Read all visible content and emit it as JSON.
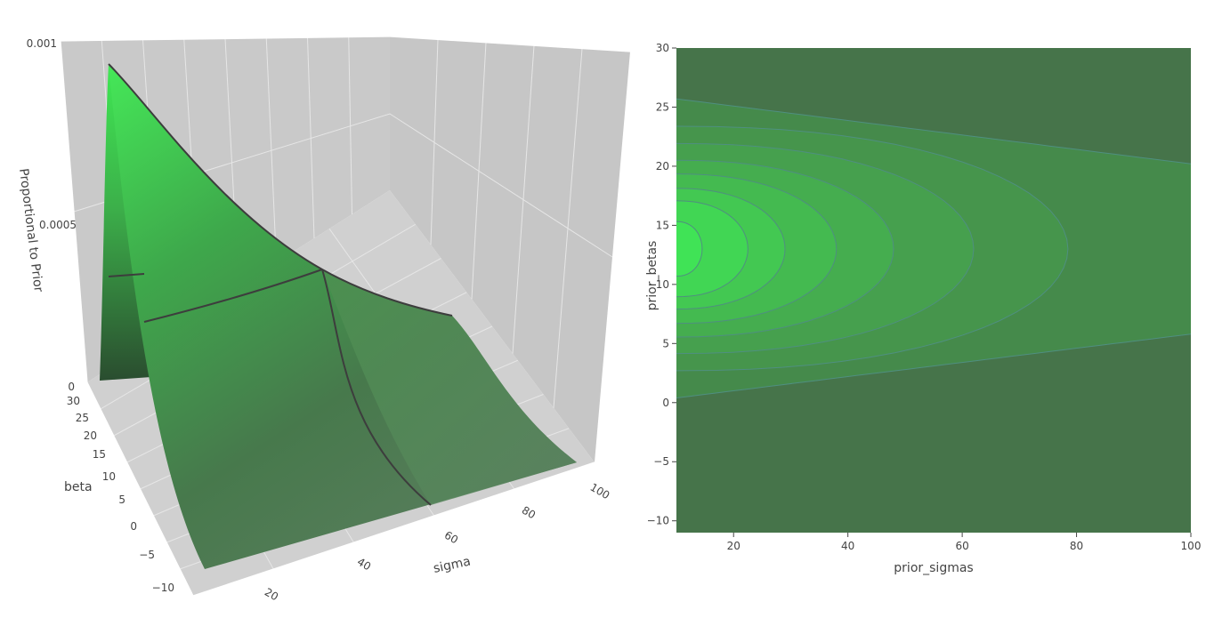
{
  "surface_plot": {
    "zaxis": {
      "title": "Proportional to Prior",
      "ticks": [
        "0.001",
        "0.0005",
        "0"
      ]
    },
    "yaxis": {
      "title": "beta",
      "ticks": [
        "30",
        "25",
        "20",
        "15",
        "10",
        "5",
        "0",
        "−5",
        "−10"
      ]
    },
    "xaxis": {
      "title": "sigma",
      "ticks": [
        "20",
        "40",
        "60",
        "80",
        "100"
      ]
    }
  },
  "chart_data": [
    {
      "type": "surface",
      "xlabel": "sigma",
      "ylabel": "beta",
      "zlabel": "Proportional to Prior",
      "xlim": [
        10,
        100
      ],
      "ylim": [
        -10,
        30
      ],
      "zlim": [
        0,
        0.001
      ],
      "ridge_z_along_sigma": {
        "x": [
          10,
          12,
          15,
          20,
          30,
          40,
          50,
          60
        ],
        "z": [
          0.00092,
          0.00083,
          0.00072,
          0.0006,
          0.00043,
          0.00033,
          0.00026,
          0.00021
        ]
      },
      "colorscale": [
        "#2f5a34",
        "#48a14f",
        "#3fe853"
      ]
    },
    {
      "type": "contour",
      "xlabel": "prior_sigmas",
      "ylabel": "prior_betas",
      "xlim": [
        10,
        100
      ],
      "ylim": [
        -11,
        30
      ],
      "xticks": [
        "20",
        "40",
        "60",
        "80",
        "100"
      ],
      "yticks": [
        "30",
        "25",
        "20",
        "15",
        "10",
        "5",
        "0",
        "−5",
        "−10"
      ],
      "center_beta": 13,
      "levels_x_intercept_at_center": [
        14.5,
        22.5,
        29,
        38,
        48,
        62,
        78.5,
        100
      ],
      "outer_level_at_x100": {
        "y_top": 20.2,
        "y_bottom": 5.8
      },
      "outer_level_at_x10": {
        "y_top": 25.7,
        "y_bottom": 0.4
      },
      "colors": [
        "#46744a",
        "#458a4b",
        "#46954c",
        "#46a04e",
        "#45ad4f",
        "#44ba50",
        "#43c852",
        "#41d654",
        "#40e356",
        "#3ef158"
      ],
      "line_color": "#4f8f80"
    }
  ]
}
